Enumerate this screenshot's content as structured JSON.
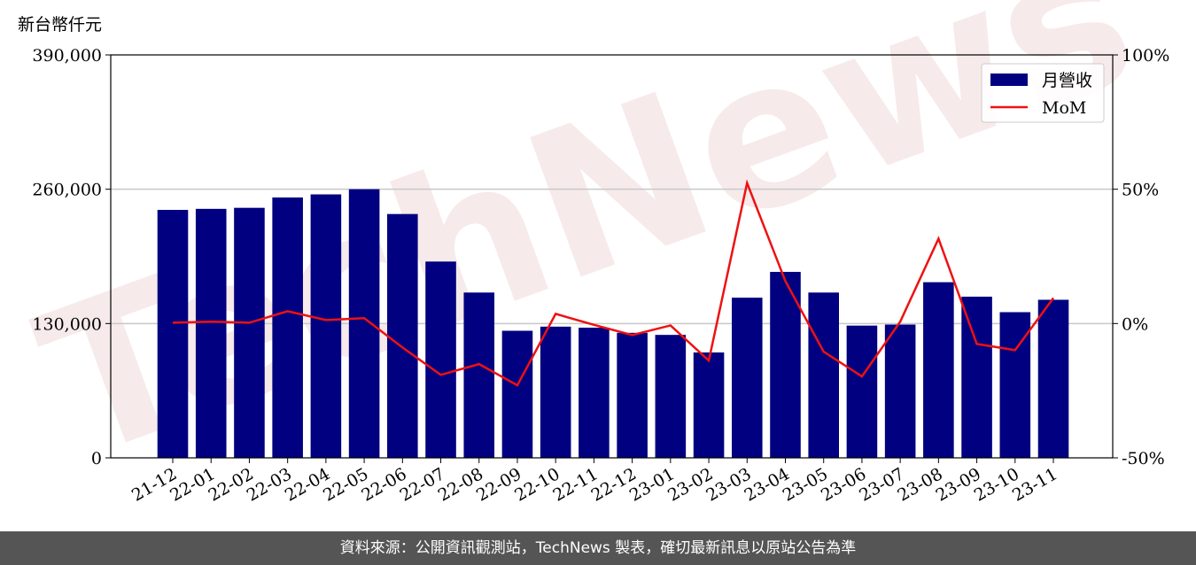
{
  "chart_data": {
    "type": "bar",
    "unit_label": "新台幣仟元",
    "watermark": "TechNews",
    "categories": [
      "21-12",
      "22-01",
      "22-02",
      "22-03",
      "22-04",
      "22-05",
      "22-06",
      "22-07",
      "22-08",
      "22-09",
      "22-10",
      "22-11",
      "22-12",
      "23-01",
      "23-02",
      "23-03",
      "23-04",
      "23-05",
      "23-06",
      "23-07",
      "23-08",
      "23-09",
      "23-10",
      "23-11"
    ],
    "series": [
      {
        "name": "月營收",
        "type": "bar",
        "color": "#000080",
        "values": [
          240000,
          241000,
          242000,
          252000,
          255000,
          260000,
          236000,
          190000,
          160000,
          123000,
          127000,
          126000,
          121000,
          119000,
          102000,
          155000,
          180000,
          160000,
          128000,
          129000,
          170000,
          156000,
          141000,
          153000
        ]
      },
      {
        "name": "MoM",
        "type": "line",
        "axis": "y2",
        "color": "#ee1111",
        "values": [
          0.3,
          0.7,
          0.3,
          4.6,
          1.3,
          2.0,
          -8.9,
          -19.1,
          -15.1,
          -23.0,
          3.6,
          -0.5,
          -4.3,
          -0.7,
          -13.8,
          52.3,
          15.8,
          -10.5,
          -19.7,
          0.7,
          31.6,
          -7.6,
          -9.9,
          9.5
        ]
      }
    ],
    "ylim": [
      0,
      390000
    ],
    "yticks": [
      0,
      {
        "value": 130000,
        "label": "130,000"
      },
      {
        "value": 260000,
        "label": "260,000"
      },
      {
        "value": 390000,
        "label": "390,000"
      }
    ],
    "y2lim": [
      -50,
      100
    ],
    "y2ticks": [
      {
        "value": -50,
        "label": "-50%"
      },
      {
        "value": 0,
        "label": "0%"
      },
      {
        "value": 50,
        "label": "50%"
      },
      {
        "value": 100,
        "label": "100%"
      }
    ],
    "grid": true,
    "legend": "upper right"
  },
  "footer": {
    "text": "資料來源：公開資訊觀測站，TechNews 製表，確切最新訊息以原站公告為準"
  }
}
